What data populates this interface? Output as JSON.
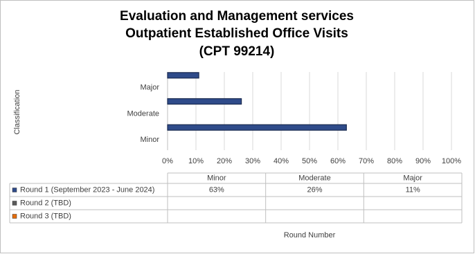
{
  "chart_data": {
    "type": "bar",
    "orientation": "horizontal",
    "title": [
      "Evaluation and Management services",
      "Outpatient Established Office Visits",
      "(CPT 99214)"
    ],
    "y_label": "Classification",
    "x_label": "Round Number",
    "categories": [
      "Minor",
      "Moderate",
      "Major"
    ],
    "series": [
      {
        "name": "Round 1 (September 2023 - June 2024)",
        "color": "#2f4b8a",
        "values": [
          63,
          26,
          11
        ],
        "value_labels": [
          "63%",
          "26%",
          "11%"
        ]
      },
      {
        "name": "Round 2 (TBD)",
        "color": "#5a5a5a",
        "values": [
          null,
          null,
          null
        ]
      },
      {
        "name": "Round 3 (TBD)",
        "color": "#e46c0a",
        "values": [
          null,
          null,
          null
        ]
      }
    ],
    "xlim": [
      0,
      100
    ],
    "xticks": [
      {
        "value": 0,
        "label": "0%"
      },
      {
        "value": 10,
        "label": "10%"
      },
      {
        "value": 20,
        "label": "20%"
      },
      {
        "value": 30,
        "label": "30%"
      },
      {
        "value": 40,
        "label": "40%"
      },
      {
        "value": 50,
        "label": "50%"
      },
      {
        "value": 60,
        "label": "60%"
      },
      {
        "value": 70,
        "label": "70%"
      },
      {
        "value": 80,
        "label": "80%"
      },
      {
        "value": 90,
        "label": "90%"
      },
      {
        "value": 100,
        "label": "100%"
      }
    ],
    "grid": true
  }
}
